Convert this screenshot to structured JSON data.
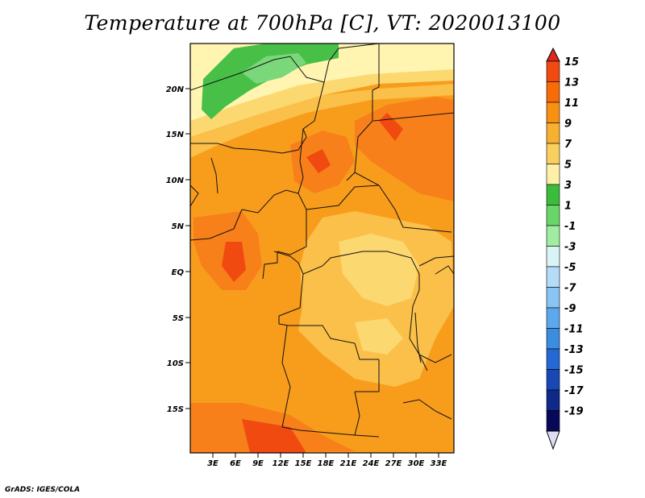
{
  "title": "Temperature at 700hPa [C], VT: 2020013100",
  "footer": "GrADS: IGES/COLA",
  "lat_labels": [
    "20N",
    "15N",
    "10N",
    "5N",
    "EQ",
    "5S",
    "10S",
    "15S"
  ],
  "lon_labels": [
    "3E",
    "6E",
    "9E",
    "12E",
    "15E",
    "18E",
    "21E",
    "24E",
    "27E",
    "30E",
    "33E"
  ],
  "colorbar": {
    "labels": [
      "15",
      "13",
      "11",
      "9",
      "7",
      "5",
      "3",
      "1",
      "-1",
      "-3",
      "-5",
      "-7",
      "-9",
      "-11",
      "-13",
      "-15",
      "-17",
      "-19"
    ],
    "colors": [
      "#e0261e",
      "#f04a10",
      "#f86c08",
      "#f89014",
      "#f8b030",
      "#f8d060",
      "#fff0a8",
      "#3cbc3c",
      "#6ad66a",
      "#a0eca0",
      "#d8f4f4",
      "#b4dcf8",
      "#8ac4f4",
      "#5ca8ec",
      "#3c8ce0",
      "#2468d4",
      "#1848b4",
      "#102888",
      "#080858",
      "#dcdcf4"
    ]
  }
}
